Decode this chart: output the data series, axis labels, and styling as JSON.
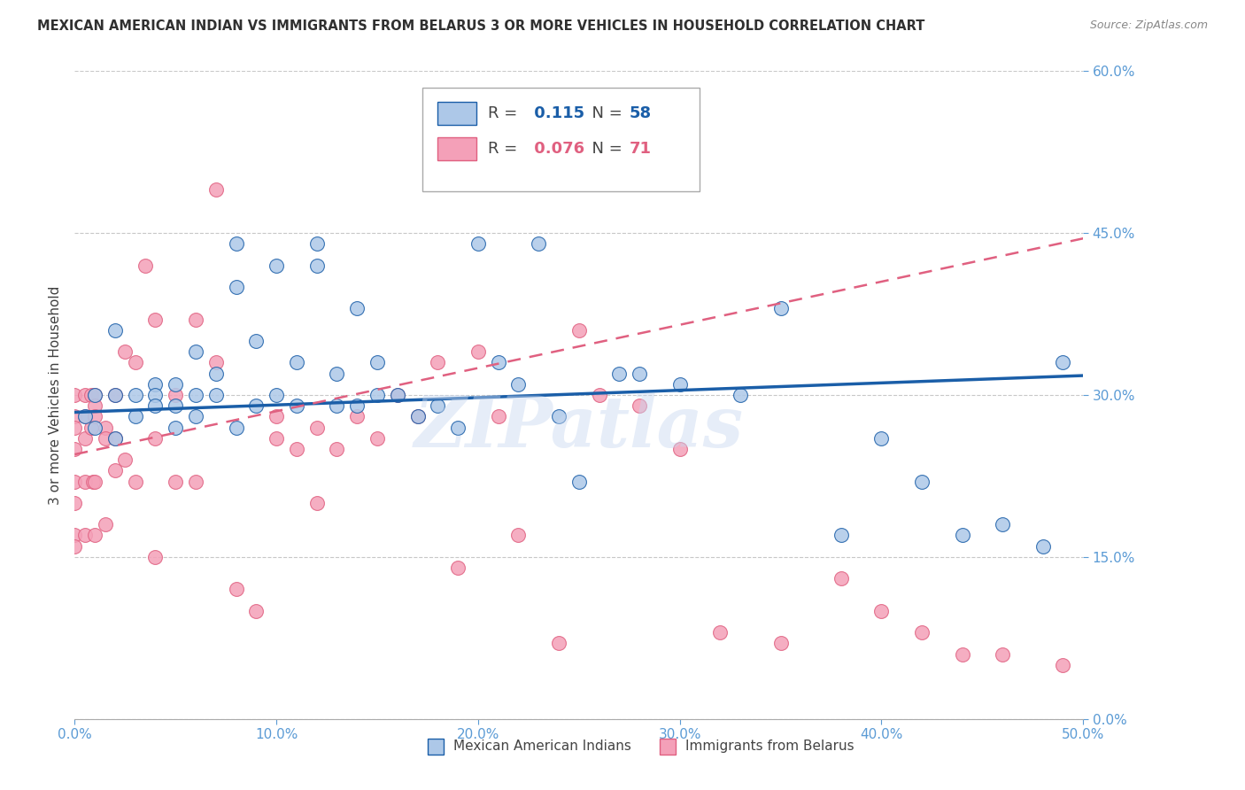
{
  "title": "MEXICAN AMERICAN INDIAN VS IMMIGRANTS FROM BELARUS 3 OR MORE VEHICLES IN HOUSEHOLD CORRELATION CHART",
  "source": "Source: ZipAtlas.com",
  "ylabel": "3 or more Vehicles in Household",
  "xmin": 0.0,
  "xmax": 0.5,
  "ymin": 0.0,
  "ymax": 0.6,
  "xticks": [
    0.0,
    0.1,
    0.2,
    0.3,
    0.4,
    0.5
  ],
  "yticks": [
    0.0,
    0.15,
    0.3,
    0.45,
    0.6
  ],
  "xtick_labels": [
    "0.0%",
    "10.0%",
    "20.0%",
    "30.0%",
    "40.0%",
    "50.0%"
  ],
  "ytick_labels": [
    "0.0%",
    "15.0%",
    "30.0%",
    "45.0%",
    "60.0%"
  ],
  "blue_R": 0.115,
  "blue_N": 58,
  "pink_R": 0.076,
  "pink_N": 71,
  "legend_label_blue": "Mexican American Indians",
  "legend_label_pink": "Immigrants from Belarus",
  "watermark": "ZIPatlas",
  "blue_scatter_x": [
    0.005,
    0.01,
    0.01,
    0.02,
    0.02,
    0.02,
    0.03,
    0.03,
    0.04,
    0.04,
    0.04,
    0.05,
    0.05,
    0.05,
    0.06,
    0.06,
    0.06,
    0.07,
    0.07,
    0.08,
    0.08,
    0.08,
    0.09,
    0.09,
    0.1,
    0.1,
    0.11,
    0.11,
    0.12,
    0.12,
    0.13,
    0.13,
    0.14,
    0.14,
    0.15,
    0.15,
    0.16,
    0.17,
    0.18,
    0.19,
    0.2,
    0.21,
    0.22,
    0.23,
    0.24,
    0.25,
    0.27,
    0.28,
    0.3,
    0.33,
    0.35,
    0.38,
    0.4,
    0.42,
    0.44,
    0.46,
    0.48,
    0.49
  ],
  "blue_scatter_y": [
    0.28,
    0.3,
    0.27,
    0.36,
    0.3,
    0.26,
    0.3,
    0.28,
    0.31,
    0.3,
    0.29,
    0.31,
    0.29,
    0.27,
    0.34,
    0.3,
    0.28,
    0.32,
    0.3,
    0.44,
    0.4,
    0.27,
    0.35,
    0.29,
    0.42,
    0.3,
    0.33,
    0.29,
    0.44,
    0.42,
    0.32,
    0.29,
    0.38,
    0.29,
    0.33,
    0.3,
    0.3,
    0.28,
    0.29,
    0.27,
    0.44,
    0.33,
    0.31,
    0.44,
    0.28,
    0.22,
    0.32,
    0.32,
    0.31,
    0.3,
    0.38,
    0.17,
    0.26,
    0.22,
    0.17,
    0.18,
    0.16,
    0.33
  ],
  "pink_scatter_x": [
    0.0,
    0.0,
    0.0,
    0.0,
    0.0,
    0.0,
    0.0,
    0.0,
    0.005,
    0.005,
    0.005,
    0.005,
    0.005,
    0.008,
    0.008,
    0.009,
    0.01,
    0.01,
    0.01,
    0.01,
    0.01,
    0.015,
    0.015,
    0.015,
    0.02,
    0.02,
    0.02,
    0.025,
    0.025,
    0.03,
    0.03,
    0.035,
    0.04,
    0.04,
    0.04,
    0.05,
    0.05,
    0.06,
    0.06,
    0.07,
    0.07,
    0.08,
    0.09,
    0.1,
    0.1,
    0.11,
    0.12,
    0.12,
    0.13,
    0.14,
    0.15,
    0.16,
    0.17,
    0.18,
    0.19,
    0.2,
    0.21,
    0.22,
    0.24,
    0.25,
    0.26,
    0.28,
    0.3,
    0.32,
    0.35,
    0.38,
    0.4,
    0.42,
    0.44,
    0.46,
    0.49
  ],
  "pink_scatter_y": [
    0.3,
    0.28,
    0.27,
    0.25,
    0.22,
    0.2,
    0.17,
    0.16,
    0.3,
    0.28,
    0.26,
    0.22,
    0.17,
    0.3,
    0.27,
    0.22,
    0.3,
    0.29,
    0.28,
    0.22,
    0.17,
    0.27,
    0.26,
    0.18,
    0.3,
    0.26,
    0.23,
    0.34,
    0.24,
    0.33,
    0.22,
    0.42,
    0.37,
    0.26,
    0.15,
    0.3,
    0.22,
    0.37,
    0.22,
    0.49,
    0.33,
    0.12,
    0.1,
    0.28,
    0.26,
    0.25,
    0.27,
    0.2,
    0.25,
    0.28,
    0.26,
    0.3,
    0.28,
    0.33,
    0.14,
    0.34,
    0.28,
    0.17,
    0.07,
    0.36,
    0.3,
    0.29,
    0.25,
    0.08,
    0.07,
    0.13,
    0.1,
    0.08,
    0.06,
    0.06,
    0.05
  ],
  "blue_line_color": "#1a5ea8",
  "pink_line_color": "#e06080",
  "blue_scatter_color": "#adc8e8",
  "pink_scatter_color": "#f4a0b8",
  "axis_color": "#5b9bd5",
  "grid_color": "#c8c8c8",
  "title_color": "#303030",
  "source_color": "#888888",
  "blue_line_start_y": 0.284,
  "blue_line_end_y": 0.318,
  "pink_line_start_y": 0.245,
  "pink_line_end_y": 0.445
}
